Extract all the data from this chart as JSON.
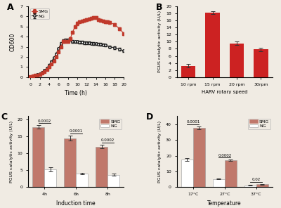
{
  "panel_A": {
    "title": "A",
    "smg_x": [
      0,
      0.5,
      1,
      1.5,
      2,
      2.5,
      3,
      3.5,
      4,
      4.5,
      5,
      5.5,
      6,
      6.5,
      7,
      7.5,
      8,
      8.5,
      9,
      9.5,
      10,
      10.5,
      11,
      11.5,
      12,
      12.5,
      13,
      13.5,
      14,
      14.5,
      15,
      15.5,
      16,
      16.5,
      17,
      18,
      19,
      20
    ],
    "smg_y": [
      0.08,
      0.12,
      0.17,
      0.22,
      0.3,
      0.4,
      0.55,
      0.75,
      1.0,
      1.3,
      1.6,
      2.0,
      2.5,
      3.0,
      3.5,
      3.5,
      3.5,
      3.8,
      4.4,
      5.0,
      5.3,
      5.5,
      5.55,
      5.6,
      5.7,
      5.75,
      5.8,
      5.85,
      5.9,
      5.7,
      5.6,
      5.55,
      5.5,
      5.45,
      5.4,
      5.2,
      4.8,
      4.3
    ],
    "smg_err": [
      0.03,
      0.03,
      0.04,
      0.04,
      0.05,
      0.05,
      0.06,
      0.07,
      0.08,
      0.09,
      0.1,
      0.1,
      0.11,
      0.12,
      0.13,
      0.13,
      0.13,
      0.14,
      0.14,
      0.14,
      0.15,
      0.13,
      0.13,
      0.13,
      0.14,
      0.14,
      0.14,
      0.14,
      0.14,
      0.14,
      0.14,
      0.13,
      0.14,
      0.13,
      0.13,
      0.14,
      0.14,
      0.15
    ],
    "ng_x": [
      0,
      0.5,
      1,
      1.5,
      2,
      2.5,
      3,
      3.5,
      4,
      4.5,
      5,
      5.5,
      6,
      6.5,
      7,
      7.5,
      8,
      8.5,
      9,
      9.5,
      10,
      10.5,
      11,
      11.5,
      12,
      12.5,
      13,
      13.5,
      14,
      14.5,
      15,
      15.5,
      16,
      17,
      18,
      19,
      20
    ],
    "ng_y": [
      0.08,
      0.12,
      0.18,
      0.25,
      0.35,
      0.48,
      0.65,
      0.9,
      1.2,
      1.55,
      1.9,
      2.3,
      2.8,
      3.3,
      3.6,
      3.65,
      3.65,
      3.7,
      3.55,
      3.5,
      3.5,
      3.45,
      3.45,
      3.4,
      3.4,
      3.38,
      3.35,
      3.32,
      3.3,
      3.28,
      3.25,
      3.2,
      3.15,
      3.0,
      2.9,
      2.75,
      2.6
    ],
    "ng_err": [
      0.03,
      0.03,
      0.04,
      0.05,
      0.05,
      0.06,
      0.07,
      0.08,
      0.09,
      0.1,
      0.1,
      0.11,
      0.12,
      0.13,
      0.13,
      0.13,
      0.13,
      0.13,
      0.13,
      0.12,
      0.12,
      0.12,
      0.12,
      0.12,
      0.12,
      0.12,
      0.12,
      0.12,
      0.12,
      0.12,
      0.12,
      0.12,
      0.12,
      0.12,
      0.12,
      0.12,
      0.12
    ],
    "xlabel": "Time (h)",
    "ylabel": "OD600",
    "ylim": [
      0,
      7
    ],
    "xlim": [
      -0.5,
      20
    ],
    "smg_color": "#c0392b",
    "ng_color": "#1a1a1a"
  },
  "panel_B": {
    "title": "B",
    "categories": [
      "10 rpm",
      "15 rpm",
      "20 rpm",
      "30rpm"
    ],
    "values": [
      3.2,
      18.2,
      9.5,
      7.8
    ],
    "errors": [
      0.5,
      0.4,
      0.5,
      0.5
    ],
    "bar_color": "#cc2222",
    "xlabel": "HARV rotary speed",
    "ylabel": "PGUS catalytic activity (U/L)",
    "ylim": [
      0,
      20
    ]
  },
  "panel_C": {
    "title": "C",
    "categories": [
      "4h",
      "6h",
      "8h"
    ],
    "smg_values": [
      17.8,
      14.5,
      12.0
    ],
    "smg_errors": [
      0.5,
      0.7,
      0.5
    ],
    "ng_values": [
      5.3,
      4.0,
      3.7
    ],
    "ng_errors": [
      0.6,
      0.25,
      0.25
    ],
    "smg_color": "#c0786b",
    "ng_color": "#ffffff",
    "xlabel": "Induction time",
    "ylabel": "PGUS catalytic activity (U/L)",
    "ylim": [
      0,
      21
    ],
    "pvalues": [
      "0.0002",
      "0.0001",
      "0.0002"
    ]
  },
  "panel_D": {
    "title": "D",
    "categories": [
      "17°C",
      "27°C",
      "37°C"
    ],
    "smg_values": [
      37.5,
      17.0,
      1.8
    ],
    "smg_errors": [
      1.0,
      0.5,
      0.15
    ],
    "ng_values": [
      17.5,
      5.3,
      1.2
    ],
    "ng_errors": [
      0.8,
      0.4,
      0.1
    ],
    "smg_color": "#c0786b",
    "ng_color": "#ffffff",
    "xlabel": "Temperature",
    "ylabel": "PGUS catalytic activity (U/L)",
    "ylim": [
      0,
      45
    ],
    "pvalues": [
      "0.0001",
      "0.0002",
      "0.02"
    ]
  },
  "background_color": "#f0ebe3"
}
